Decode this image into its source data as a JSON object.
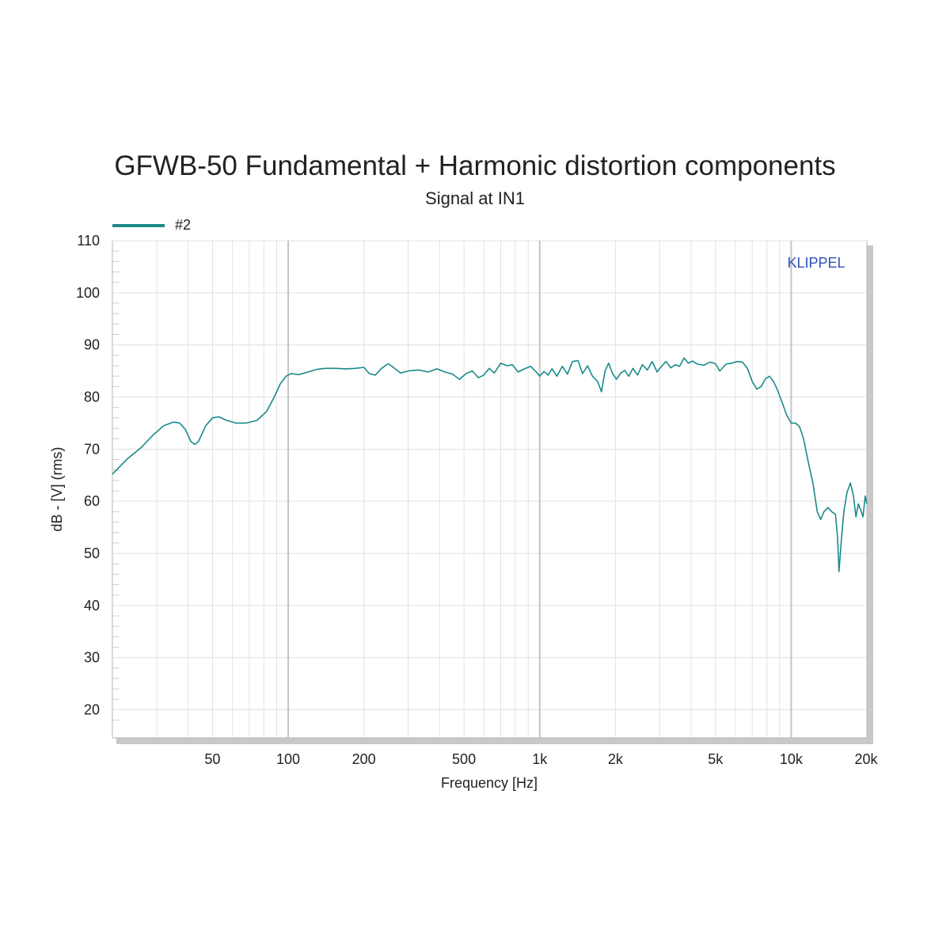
{
  "chart_data": {
    "type": "line",
    "title": "GFWB-50 Fundamental + Harmonic distortion components",
    "subtitle": "Signal at IN1",
    "xlabel": "Frequency [Hz]",
    "ylabel": "dB - [V] (rms)",
    "x_scale": "log",
    "xlim": [
      20,
      20000
    ],
    "ylim": [
      15,
      110
    ],
    "x_ticks": [
      {
        "value": 50,
        "label": "50"
      },
      {
        "value": 100,
        "label": "100"
      },
      {
        "value": 200,
        "label": "200"
      },
      {
        "value": 500,
        "label": "500"
      },
      {
        "value": 1000,
        "label": "1k"
      },
      {
        "value": 2000,
        "label": "2k"
      },
      {
        "value": 5000,
        "label": "5k"
      },
      {
        "value": 10000,
        "label": "10k"
      },
      {
        "value": 20000,
        "label": "20k"
      }
    ],
    "y_ticks": [
      20,
      30,
      40,
      50,
      60,
      70,
      80,
      90,
      100,
      110
    ],
    "grid": true,
    "legend_position": "top-left",
    "watermark": "KLIPPEL",
    "series": [
      {
        "name": "#2",
        "color": "#1a8a8a",
        "points": [
          [
            20,
            65.2
          ],
          [
            23,
            68.2
          ],
          [
            26,
            70.3
          ],
          [
            29,
            72.7
          ],
          [
            32,
            74.5
          ],
          [
            35,
            75.2
          ],
          [
            37,
            75.0
          ],
          [
            39,
            73.8
          ],
          [
            41,
            71.5
          ],
          [
            42.5,
            70.9
          ],
          [
            44,
            71.5
          ],
          [
            47,
            74.5
          ],
          [
            50,
            76.0
          ],
          [
            53,
            76.2
          ],
          [
            57,
            75.5
          ],
          [
            62,
            75.0
          ],
          [
            68,
            75.0
          ],
          [
            75,
            75.5
          ],
          [
            82,
            77.2
          ],
          [
            88,
            80.0
          ],
          [
            93,
            82.5
          ],
          [
            98,
            84.0
          ],
          [
            103,
            84.5
          ],
          [
            110,
            84.3
          ],
          [
            120,
            84.8
          ],
          [
            130,
            85.3
          ],
          [
            140,
            85.5
          ],
          [
            155,
            85.5
          ],
          [
            170,
            85.4
          ],
          [
            185,
            85.5
          ],
          [
            200,
            85.7
          ],
          [
            210,
            84.5
          ],
          [
            222,
            84.2
          ],
          [
            235,
            85.5
          ],
          [
            250,
            86.4
          ],
          [
            265,
            85.5
          ],
          [
            280,
            84.6
          ],
          [
            300,
            85.0
          ],
          [
            330,
            85.2
          ],
          [
            360,
            84.8
          ],
          [
            390,
            85.4
          ],
          [
            420,
            84.8
          ],
          [
            450,
            84.4
          ],
          [
            480,
            83.4
          ],
          [
            510,
            84.5
          ],
          [
            540,
            85.0
          ],
          [
            570,
            83.7
          ],
          [
            600,
            84.2
          ],
          [
            630,
            85.5
          ],
          [
            660,
            84.6
          ],
          [
            700,
            86.5
          ],
          [
            740,
            86.0
          ],
          [
            780,
            86.2
          ],
          [
            820,
            84.8
          ],
          [
            870,
            85.4
          ],
          [
            920,
            85.9
          ],
          [
            970,
            84.8
          ],
          [
            1000,
            84.0
          ],
          [
            1040,
            84.9
          ],
          [
            1080,
            84.2
          ],
          [
            1120,
            85.4
          ],
          [
            1170,
            84.0
          ],
          [
            1230,
            85.9
          ],
          [
            1290,
            84.4
          ],
          [
            1350,
            86.8
          ],
          [
            1420,
            87.0
          ],
          [
            1480,
            84.5
          ],
          [
            1550,
            86.0
          ],
          [
            1620,
            84.0
          ],
          [
            1700,
            83.0
          ],
          [
            1760,
            81.0
          ],
          [
            1820,
            85.0
          ],
          [
            1880,
            86.5
          ],
          [
            1950,
            84.5
          ],
          [
            2020,
            83.4
          ],
          [
            2100,
            84.6
          ],
          [
            2180,
            85.1
          ],
          [
            2260,
            84.0
          ],
          [
            2350,
            85.5
          ],
          [
            2450,
            84.2
          ],
          [
            2560,
            86.2
          ],
          [
            2680,
            85.2
          ],
          [
            2800,
            86.8
          ],
          [
            2930,
            84.8
          ],
          [
            3050,
            85.9
          ],
          [
            3180,
            86.8
          ],
          [
            3320,
            85.6
          ],
          [
            3460,
            86.2
          ],
          [
            3600,
            85.9
          ],
          [
            3750,
            87.5
          ],
          [
            3900,
            86.5
          ],
          [
            4050,
            86.9
          ],
          [
            4250,
            86.3
          ],
          [
            4500,
            86.1
          ],
          [
            4750,
            86.7
          ],
          [
            5000,
            86.4
          ],
          [
            5200,
            85.0
          ],
          [
            5500,
            86.3
          ],
          [
            5800,
            86.5
          ],
          [
            6100,
            86.8
          ],
          [
            6400,
            86.7
          ],
          [
            6700,
            85.5
          ],
          [
            7000,
            83.0
          ],
          [
            7300,
            81.5
          ],
          [
            7600,
            82.0
          ],
          [
            7900,
            83.5
          ],
          [
            8200,
            84.0
          ],
          [
            8500,
            83.0
          ],
          [
            8800,
            81.5
          ],
          [
            9200,
            79.0
          ],
          [
            9600,
            76.5
          ],
          [
            10000,
            75.0
          ],
          [
            10400,
            75.0
          ],
          [
            10800,
            74.3
          ],
          [
            11200,
            72.0
          ],
          [
            11700,
            67.5
          ],
          [
            12200,
            63.5
          ],
          [
            12700,
            58.0
          ],
          [
            13100,
            56.5
          ],
          [
            13500,
            58.0
          ],
          [
            14000,
            58.8
          ],
          [
            14500,
            58.0
          ],
          [
            15000,
            57.5
          ],
          [
            15300,
            53.0
          ],
          [
            15500,
            46.5
          ],
          [
            15800,
            52.0
          ],
          [
            16200,
            58.0
          ],
          [
            16700,
            61.8
          ],
          [
            17200,
            63.5
          ],
          [
            17700,
            61.0
          ],
          [
            18100,
            57.0
          ],
          [
            18500,
            59.5
          ],
          [
            19000,
            58.0
          ],
          [
            19300,
            57.0
          ],
          [
            19700,
            61.0
          ],
          [
            20000,
            59.5
          ]
        ]
      }
    ]
  }
}
